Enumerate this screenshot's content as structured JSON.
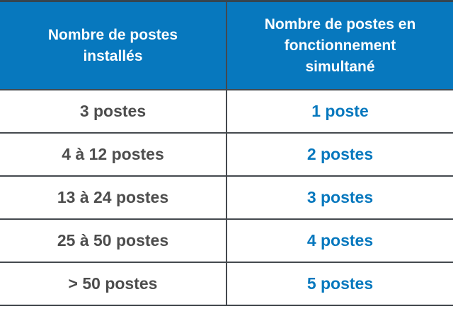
{
  "colors": {
    "header_bg": "#0778be",
    "header_text": "#ffffff",
    "value_blue": "#0778be",
    "text_dark": "#4d4d4d",
    "grid_line": "#44494e",
    "top_border": "#36454f"
  },
  "chart_data": {
    "type": "table",
    "columns": [
      "Nombre de postes installés",
      "Nombre de postes en fonctionnement simultané"
    ],
    "rows": [
      [
        "3 postes",
        "1 poste"
      ],
      [
        "4 à 12 postes",
        "2 postes"
      ],
      [
        "13 à 24 postes",
        "3 postes"
      ],
      [
        "25 à 50 postes",
        "4 postes"
      ],
      [
        "> 50 postes",
        "5 postes"
      ]
    ]
  }
}
